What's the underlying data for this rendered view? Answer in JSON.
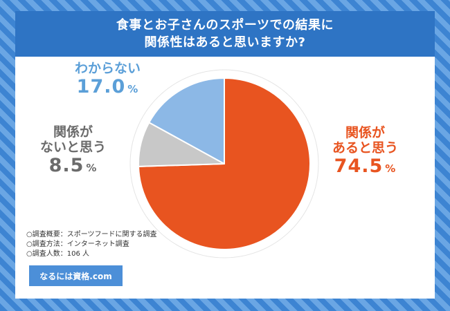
{
  "title": {
    "line1": "食事とお子さんのスポーツでの結果に",
    "line2": "関係性はあると思いますか?"
  },
  "chart_data": {
    "type": "pie",
    "title": "食事とお子さんのスポーツでの結果に関係性はあると思いますか?",
    "start_angle_deg": 0,
    "direction": "clockwise",
    "slices": [
      {
        "label_lines": [
          "関係が",
          "あると思う"
        ],
        "value": 74.5,
        "display": "74.5",
        "color": "#e85420"
      },
      {
        "label_lines": [
          "関係が",
          "ないと思う"
        ],
        "value": 8.5,
        "display": "8.5",
        "color": "#c8c8c8"
      },
      {
        "label_lines": [
          "わからない"
        ],
        "value": 17.0,
        "display": "17.0",
        "color": "#8cb8e6"
      }
    ],
    "percent_sign": "%"
  },
  "notes": [
    "○調査概要：スポーツフードに関する調査",
    "○調査方法：インターネット調査",
    "○調査人数：106 人"
  ],
  "brand": "なるには資格.com",
  "colors": {
    "banner": "#2e74c4",
    "brand_box": "#4c8fd8"
  }
}
